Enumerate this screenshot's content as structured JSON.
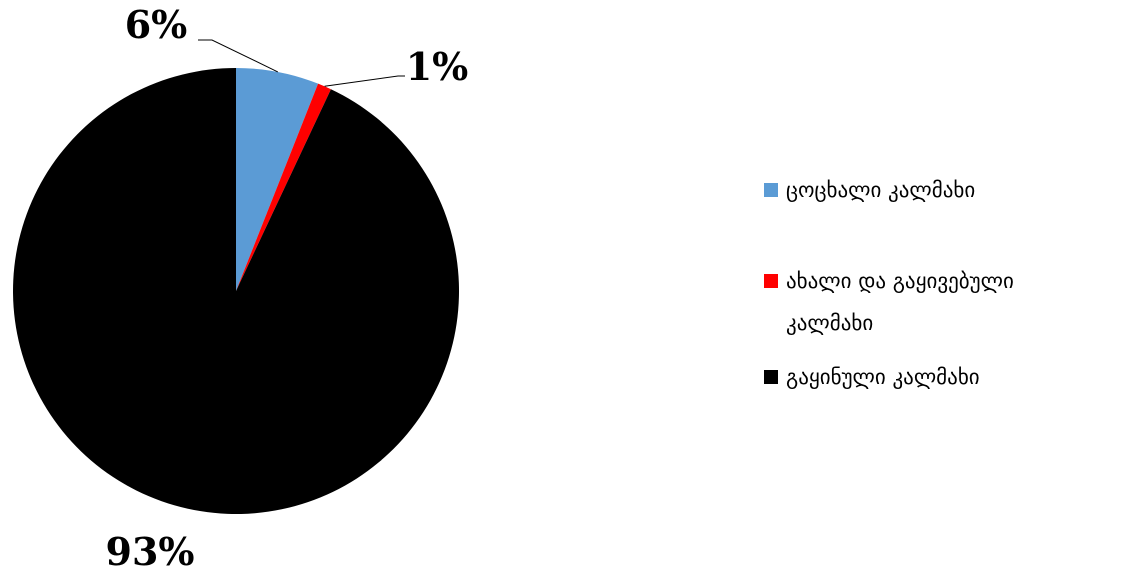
{
  "chart_data": {
    "type": "pie",
    "title": "",
    "slices": [
      {
        "label": "ცოცხალი კალმახი",
        "value": 6,
        "value_label": "6%",
        "color": "#5B9BD5"
      },
      {
        "label": "ახალი და გაყივებული კალმახი",
        "value": 1,
        "value_label": "1%",
        "color": "#FF0000"
      },
      {
        "label": "გაყინული კალმახი",
        "value": 93,
        "value_label": "93%",
        "color": "#000000"
      }
    ],
    "legend_position": "right",
    "start_angle_deg": 0,
    "direction": "clockwise"
  }
}
